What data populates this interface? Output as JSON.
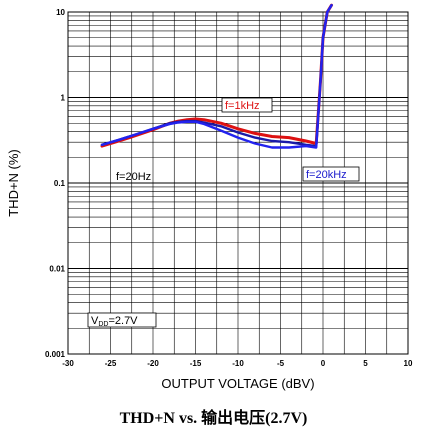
{
  "caption": "THD+N vs. 输出电压(2.7V)",
  "chart_data": {
    "type": "line",
    "title": "",
    "xlabel": "OUTPUT VOLTAGE (dBV)",
    "ylabel": "THD+N (%)",
    "xlim": [
      -30,
      10
    ],
    "ylim": [
      0.001,
      10
    ],
    "yscale": "log",
    "grid": true,
    "x_ticks": [
      "-30",
      "-25",
      "-20",
      "-15",
      "-10",
      "-5",
      "0",
      "5",
      "10"
    ],
    "y_ticks": [
      "10",
      "1",
      "0.1",
      "0.01",
      "0.001"
    ],
    "series": [
      {
        "name": "f=1kHz",
        "color": "#dd1111",
        "x": [
          -26,
          -24,
          -22,
          -20,
          -18,
          -17,
          -16,
          -15,
          -14,
          -12,
          -10,
          -8,
          -6,
          -4,
          -2,
          -0.8,
          -0.3,
          0,
          0.5,
          1
        ],
        "y": [
          0.27,
          0.31,
          0.36,
          0.42,
          0.5,
          0.53,
          0.55,
          0.56,
          0.55,
          0.5,
          0.43,
          0.38,
          0.35,
          0.34,
          0.31,
          0.29,
          1.5,
          5.0,
          10,
          12
        ]
      },
      {
        "name": "f=20Hz",
        "color": "#1a1aa8",
        "x": [
          -26,
          -24,
          -22,
          -20,
          -18,
          -17,
          -16,
          -15,
          -14,
          -12,
          -10,
          -8,
          -6,
          -4,
          -2,
          -0.8,
          -0.3,
          0,
          0.5,
          1
        ],
        "y": [
          0.28,
          0.32,
          0.37,
          0.43,
          0.5,
          0.52,
          0.53,
          0.53,
          0.51,
          0.46,
          0.39,
          0.34,
          0.31,
          0.3,
          0.28,
          0.27,
          1.5,
          5.0,
          10,
          12
        ]
      },
      {
        "name": "f=20kHz",
        "color": "#2222ee",
        "x": [
          -26,
          -24,
          -22,
          -20,
          -18,
          -17,
          -16,
          -15,
          -14,
          -12,
          -10,
          -8,
          -6,
          -4,
          -2,
          -0.8,
          -0.3,
          0,
          0.5,
          1
        ],
        "y": [
          0.28,
          0.32,
          0.37,
          0.43,
          0.49,
          0.51,
          0.52,
          0.52,
          0.49,
          0.41,
          0.34,
          0.29,
          0.26,
          0.26,
          0.27,
          0.26,
          1.5,
          5.0,
          10,
          12
        ]
      }
    ],
    "annotations": [
      {
        "text": "f=1kHz",
        "color": "#dd1111",
        "boxed": true
      },
      {
        "text": "f=20Hz",
        "color": "#000000",
        "boxed": false
      },
      {
        "text": "f=20kHz",
        "color": "#1a1acc",
        "boxed": true
      },
      {
        "text": "VDD=2.7V",
        "main": "V",
        "sub": "DD",
        "rest": "=2.7V",
        "color": "#000000",
        "boxed": true
      }
    ]
  }
}
